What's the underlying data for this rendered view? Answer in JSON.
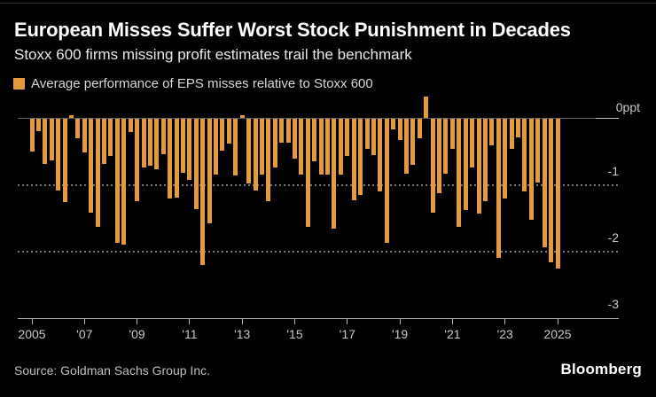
{
  "header": {
    "title": "European Misses Suffer Worst Stock Punishment in Decades",
    "subtitle": "Stoxx 600 firms missing profit estimates trail the benchmark"
  },
  "legend": {
    "label": "Average performance of EPS misses relative to Stoxx 600"
  },
  "chart_data": {
    "type": "bar",
    "title": "European Misses Suffer Worst Stock Punishment in Decades",
    "subtitle": "Stoxx 600 firms missing profit estimates trail the benchmark",
    "series_name": "Average performance of EPS misses relative to Stoxx 600",
    "unit": "ppt",
    "xlabel": "",
    "ylabel": "0ppt",
    "ylim": [
      -3,
      0.4
    ],
    "grid": "dotted horizontal gridlines at -1 and -2, solid zero line, solid baseline at -3",
    "legend_position": "top-left",
    "bar_color": "#E39A3B",
    "x_frequency": "quarterly",
    "y_ticks": [
      {
        "value": 0,
        "label": "0ppt"
      },
      {
        "value": -1,
        "label": "-1"
      },
      {
        "value": -2,
        "label": "-2"
      },
      {
        "value": -3,
        "label": "-3"
      }
    ],
    "x_tick_labels": [
      "2005",
      "'07",
      "'09",
      "'11",
      "'13",
      "'15",
      "'17",
      "'19",
      "'21",
      "'23",
      "2025"
    ],
    "x": [
      "2005Q1",
      "2005Q2",
      "2005Q3",
      "2005Q4",
      "2006Q1",
      "2006Q2",
      "2006Q3",
      "2006Q4",
      "2007Q1",
      "2007Q2",
      "2007Q3",
      "2007Q4",
      "2008Q1",
      "2008Q2",
      "2008Q3",
      "2008Q4",
      "2009Q1",
      "2009Q2",
      "2009Q3",
      "2009Q4",
      "2010Q1",
      "2010Q2",
      "2010Q3",
      "2010Q4",
      "2011Q1",
      "2011Q2",
      "2011Q3",
      "2011Q4",
      "2012Q1",
      "2012Q2",
      "2012Q3",
      "2012Q4",
      "2013Q1",
      "2013Q2",
      "2013Q3",
      "2013Q4",
      "2014Q1",
      "2014Q2",
      "2014Q3",
      "2014Q4",
      "2015Q1",
      "2015Q2",
      "2015Q3",
      "2015Q4",
      "2016Q1",
      "2016Q2",
      "2016Q3",
      "2016Q4",
      "2017Q1",
      "2017Q2",
      "2017Q3",
      "2017Q4",
      "2018Q1",
      "2018Q2",
      "2018Q3",
      "2018Q4",
      "2019Q1",
      "2019Q2",
      "2019Q3",
      "2019Q4",
      "2020Q1",
      "2020Q2",
      "2020Q3",
      "2020Q4",
      "2021Q1",
      "2021Q2",
      "2021Q3",
      "2021Q4",
      "2022Q1",
      "2022Q2",
      "2022Q3",
      "2022Q4",
      "2023Q1",
      "2023Q2",
      "2023Q3",
      "2023Q4",
      "2024Q1",
      "2024Q2",
      "2024Q3",
      "2024Q4",
      "2025Q1"
    ],
    "values": [
      -0.5,
      -0.19,
      -0.69,
      -0.63,
      -1.09,
      -1.26,
      0.04,
      -0.3,
      -0.51,
      -1.42,
      -1.63,
      -0.69,
      -0.57,
      -1.87,
      -1.9,
      -0.21,
      -1.25,
      -0.74,
      -0.71,
      -0.77,
      -0.54,
      -1.21,
      -1.19,
      -0.82,
      -0.92,
      -1.37,
      -2.2,
      -1.58,
      -0.85,
      -0.49,
      -0.38,
      -0.86,
      0.05,
      -0.98,
      -1.08,
      -0.85,
      -1.25,
      -0.74,
      -0.36,
      -0.37,
      -0.61,
      -0.85,
      -1.63,
      -0.65,
      -0.85,
      -0.84,
      -1.66,
      -0.84,
      -0.57,
      -1.23,
      -1.15,
      -0.46,
      -0.55,
      -1.1,
      -1.87,
      -0.17,
      -0.32,
      -0.83,
      -0.7,
      -0.3,
      0.33,
      -1.42,
      -1.12,
      -0.83,
      -0.46,
      -1.63,
      -1.38,
      -0.74,
      -1.43,
      -1.25,
      -0.41,
      -2.09,
      -1.21,
      -0.46,
      -0.28,
      -1.1,
      -1.52,
      -0.96,
      -1.94,
      -2.16,
      -2.25
    ]
  },
  "footer": {
    "source": "Source: Goldman Sachs Group Inc.",
    "logo": "Bloomberg"
  },
  "colors": {
    "background": "#000000",
    "bar": "#E39A3B",
    "title_text": "#FFFFFF",
    "subtitle_text": "#E8E8E8",
    "axis_label": "#C7C7C7",
    "gridline_dotted": "#787878",
    "zero_line": "#5F5F5F",
    "axis_line_cap": "#C9C9C9",
    "baseline": "#B0B0B0",
    "source_text": "#BFBFBF"
  }
}
